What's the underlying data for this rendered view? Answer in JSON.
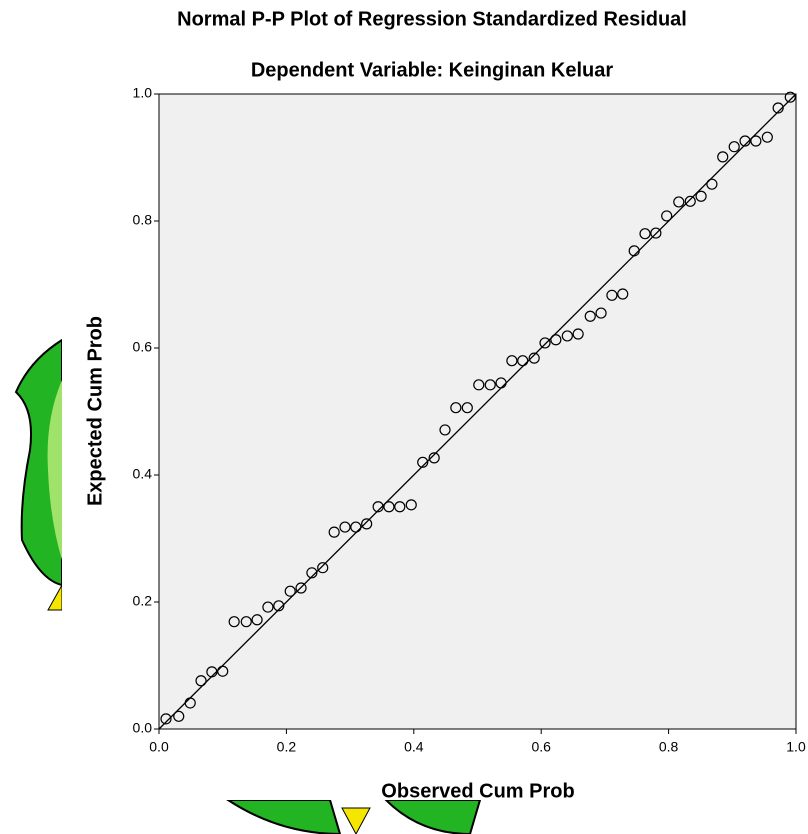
{
  "chart_data": {
    "type": "scatter",
    "title": "Normal P-P Plot of Regression Standardized Residual",
    "subtitle": "Dependent Variable: Keinginan Keluar",
    "x_label": "Observed Cum Prob",
    "y_label": "Expected Cum Prob",
    "xlim": [
      0,
      1
    ],
    "ylim": [
      0,
      1
    ],
    "xticks": [
      {
        "value": 0,
        "label": "0.0"
      },
      {
        "value": 0.2,
        "label": "0.2"
      },
      {
        "value": 0.4,
        "label": "0.4"
      },
      {
        "value": 0.6,
        "label": "0.6"
      },
      {
        "value": 0.8,
        "label": "0.8"
      },
      {
        "value": 1,
        "label": "1.0"
      }
    ],
    "yticks": [
      {
        "value": 0,
        "label": "0.0"
      },
      {
        "value": 0.2,
        "label": "0.2"
      },
      {
        "value": 0.4,
        "label": "0.4"
      },
      {
        "value": 0.6,
        "label": "0.6"
      },
      {
        "value": 0.8,
        "label": "0.8"
      },
      {
        "value": 1,
        "label": "1.0"
      }
    ],
    "x": [
      0.011,
      0.031,
      0.049,
      0.066,
      0.083,
      0.1,
      0.118,
      0.137,
      0.154,
      0.171,
      0.188,
      0.206,
      0.223,
      0.24,
      0.257,
      0.275,
      0.292,
      0.309,
      0.326,
      0.344,
      0.361,
      0.378,
      0.396,
      0.414,
      0.432,
      0.449,
      0.466,
      0.484,
      0.502,
      0.52,
      0.537,
      0.554,
      0.571,
      0.589,
      0.606,
      0.623,
      0.641,
      0.658,
      0.677,
      0.694,
      0.711,
      0.728,
      0.746,
      0.763,
      0.78,
      0.797,
      0.816,
      0.834,
      0.851,
      0.868,
      0.885,
      0.903,
      0.92,
      0.937,
      0.955,
      0.972,
      0.991
    ],
    "values": [
      0.016,
      0.02,
      0.041,
      0.076,
      0.09,
      0.091,
      0.169,
      0.169,
      0.172,
      0.192,
      0.194,
      0.217,
      0.222,
      0.246,
      0.254,
      0.31,
      0.318,
      0.318,
      0.323,
      0.35,
      0.35,
      0.35,
      0.353,
      0.42,
      0.427,
      0.471,
      0.506,
      0.506,
      0.542,
      0.542,
      0.545,
      0.58,
      0.58,
      0.584,
      0.608,
      0.613,
      0.619,
      0.622,
      0.65,
      0.655,
      0.683,
      0.685,
      0.753,
      0.78,
      0.781,
      0.808,
      0.83,
      0.831,
      0.839,
      0.858,
      0.901,
      0.917,
      0.926,
      0.926,
      0.932,
      0.978,
      0.995
    ]
  }
}
